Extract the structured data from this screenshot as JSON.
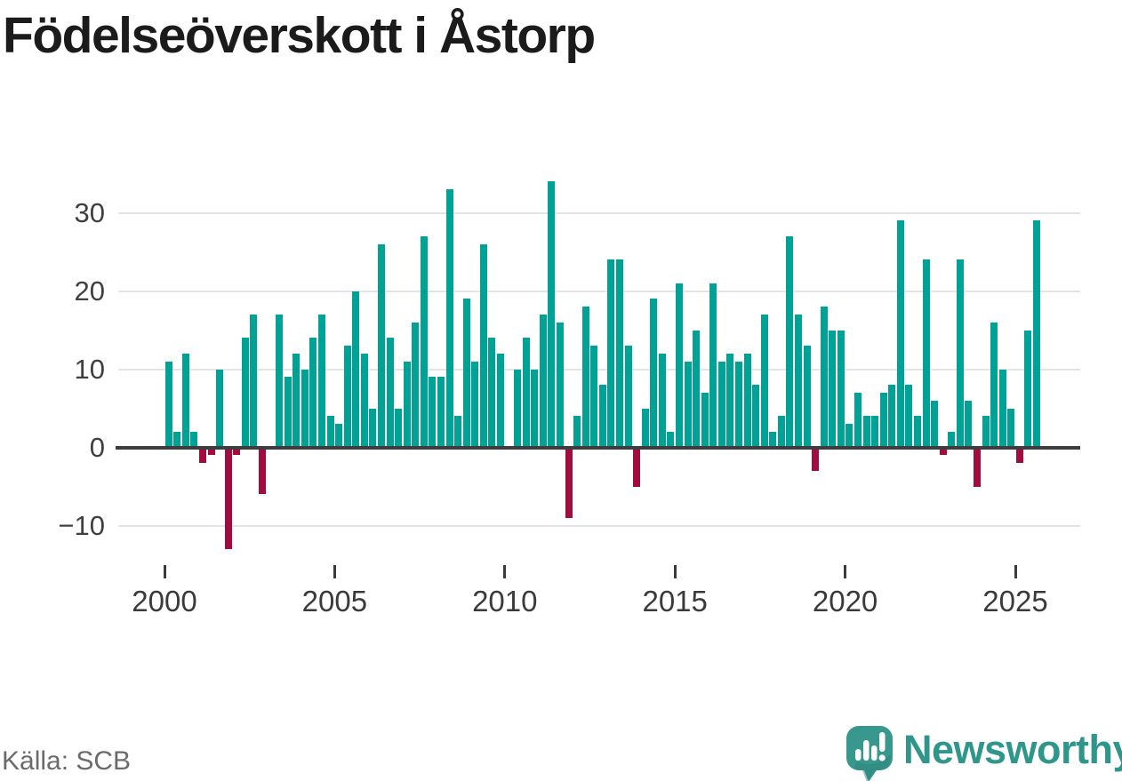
{
  "header": {
    "title": "Födelseöverskott i Åstorp"
  },
  "footer": {
    "source": "Källa: SCB",
    "logo_text": "Newsworthy"
  },
  "colors": {
    "positive_bar": "#00a296",
    "negative_bar": "#a30a3e",
    "gridline": "#e4e4e4",
    "zero_line": "#3d3d3d",
    "axis_text": "#3a3a3a",
    "source_text": "#6b6b6b",
    "logo_teal": "#38988e",
    "wordmark_teal": "#2f968c"
  },
  "chart_data": {
    "type": "bar",
    "title": "Födelseöverskott i Åstorp",
    "frequency": "quarterly",
    "x_start": "2000 Q1",
    "x_end": "2025 Q3",
    "x_tick_labels": [
      "2000",
      "2005",
      "2010",
      "2015",
      "2020",
      "2025"
    ],
    "y_ticks": [
      30,
      20,
      10,
      0,
      -10
    ],
    "y_tick_labels": [
      "30",
      "20",
      "10",
      "0",
      "−10"
    ],
    "ylim": [
      -14,
      35.5
    ],
    "grid": true,
    "legend": "none",
    "series": [
      {
        "name": "Födelseöverskott",
        "values": [
          11,
          2,
          12,
          2,
          -2,
          -1,
          10,
          -13,
          -1,
          14,
          17,
          -6,
          0,
          17,
          9,
          12,
          10,
          14,
          17,
          4,
          3,
          13,
          20,
          12,
          5,
          26,
          14,
          5,
          11,
          16,
          27,
          9,
          9,
          33,
          4,
          19,
          11,
          26,
          14,
          12,
          0,
          10,
          14,
          10,
          17,
          34,
          16,
          -9,
          4,
          18,
          13,
          8,
          24,
          24,
          13,
          -5,
          5,
          19,
          12,
          2,
          21,
          11,
          15,
          7,
          21,
          11,
          12,
          11,
          12,
          8,
          17,
          2,
          4,
          27,
          17,
          13,
          -3,
          18,
          15,
          15,
          3,
          7,
          4,
          4,
          7,
          8,
          29,
          8,
          4,
          24,
          6,
          -1,
          2,
          24,
          6,
          -5,
          4,
          16,
          10,
          5,
          -2,
          15,
          29
        ]
      }
    ]
  }
}
